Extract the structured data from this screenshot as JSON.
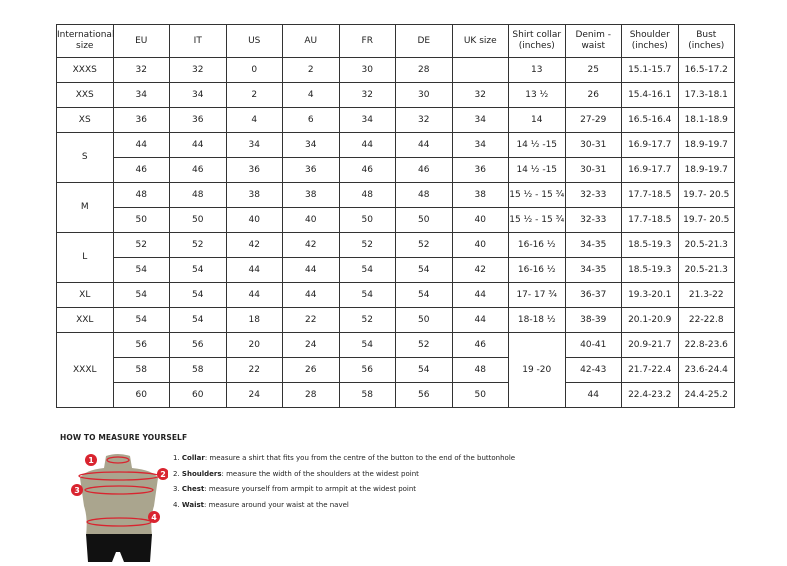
{
  "headers": [
    "International size",
    "EU",
    "IT",
    "US",
    "AU",
    "FR",
    "DE",
    "UK size",
    "Shirt collar (inches)",
    "Denim - waist",
    "Shoulder (inches)",
    "Bust (inches)"
  ],
  "groups": [
    {
      "size": "XXXS",
      "rows": [
        [
          "32",
          "32",
          "0",
          "2",
          "30",
          "28",
          "",
          "13",
          "25",
          "15.1-15.7",
          "16.5-17.2"
        ]
      ]
    },
    {
      "size": "XXS",
      "rows": [
        [
          "34",
          "34",
          "2",
          "4",
          "32",
          "30",
          "32",
          "13 ½",
          "26",
          "15.4-16.1",
          "17.3-18.1"
        ]
      ]
    },
    {
      "size": "XS",
      "rows": [
        [
          "36",
          "36",
          "4",
          "6",
          "34",
          "32",
          "34",
          "14",
          "27-29",
          "16.5-16.4",
          "18.1-18.9"
        ]
      ]
    },
    {
      "size": "S",
      "rows": [
        [
          "44",
          "44",
          "34",
          "34",
          "44",
          "44",
          "34",
          "14 ½ -15",
          "30-31",
          "16.9-17.7",
          "18.9-19.7"
        ],
        [
          "46",
          "46",
          "36",
          "36",
          "46",
          "46",
          "36",
          "14 ½ -15",
          "30-31",
          "16.9-17.7",
          "18.9-19.7"
        ]
      ]
    },
    {
      "size": "M",
      "rows": [
        [
          "48",
          "48",
          "38",
          "38",
          "48",
          "48",
          "38",
          "15 ½ - 15 ¾",
          "32-33",
          "17.7-18.5",
          "19.7- 20.5"
        ],
        [
          "50",
          "50",
          "40",
          "40",
          "50",
          "50",
          "40",
          "15 ½ - 15 ¾",
          "32-33",
          "17.7-18.5",
          "19.7- 20.5"
        ]
      ]
    },
    {
      "size": "L",
      "rows": [
        [
          "52",
          "52",
          "42",
          "42",
          "52",
          "52",
          "40",
          "16-16 ½",
          "34-35",
          "18.5-19.3",
          "20.5-21.3"
        ],
        [
          "54",
          "54",
          "44",
          "44",
          "54",
          "54",
          "42",
          "16-16 ½",
          "34-35",
          "18.5-19.3",
          "20.5-21.3"
        ]
      ]
    },
    {
      "size": "XL",
      "rows": [
        [
          "54",
          "54",
          "44",
          "44",
          "54",
          "54",
          "44",
          "17- 17 ¾",
          "36-37",
          "19.3-20.1",
          "21.3-22"
        ]
      ]
    },
    {
      "size": "XXL",
      "rows": [
        [
          "54",
          "54",
          "18",
          "22",
          "52",
          "50",
          "44",
          "18-18 ½",
          "38-39",
          "20.1-20.9",
          "22-22.8"
        ]
      ]
    },
    {
      "size": "XXXL",
      "rows": [
        [
          "56",
          "56",
          "20",
          "24",
          "54",
          "52",
          "46",
          "19 -20",
          "40-41",
          "20.9-21.7",
          "22.8-23.6"
        ],
        [
          "58",
          "58",
          "22",
          "26",
          "56",
          "54",
          "48",
          null,
          "42-43",
          "21.7-22.4",
          "23.6-24.4"
        ],
        [
          "60",
          "60",
          "24",
          "28",
          "58",
          "56",
          "50",
          null,
          "44",
          "22.4-23.2",
          "24.4-25.2"
        ]
      ]
    }
  ],
  "howto": {
    "title": "HOW TO MEASURE YOURSELF",
    "markers": [
      "1",
      "2",
      "3",
      "4"
    ],
    "steps": [
      {
        "num": "1.",
        "term": "Collar",
        "text": ": measure a shirt that fits you from the centre of the button to the end of the buttonhole"
      },
      {
        "num": "2.",
        "term": "Shoulders",
        "text": ": measure the width of the shoulders at the widest point"
      },
      {
        "num": "3.",
        "term": "Chest",
        "text": ": measure yourself from armpit to armpit at the widest point"
      },
      {
        "num": "4.",
        "term": "Waist",
        "text": ": measure around your waist at the navel"
      }
    ],
    "colors": {
      "marker": "#d9242f",
      "torso": "#aaa58e",
      "shorts": "#111111"
    }
  }
}
